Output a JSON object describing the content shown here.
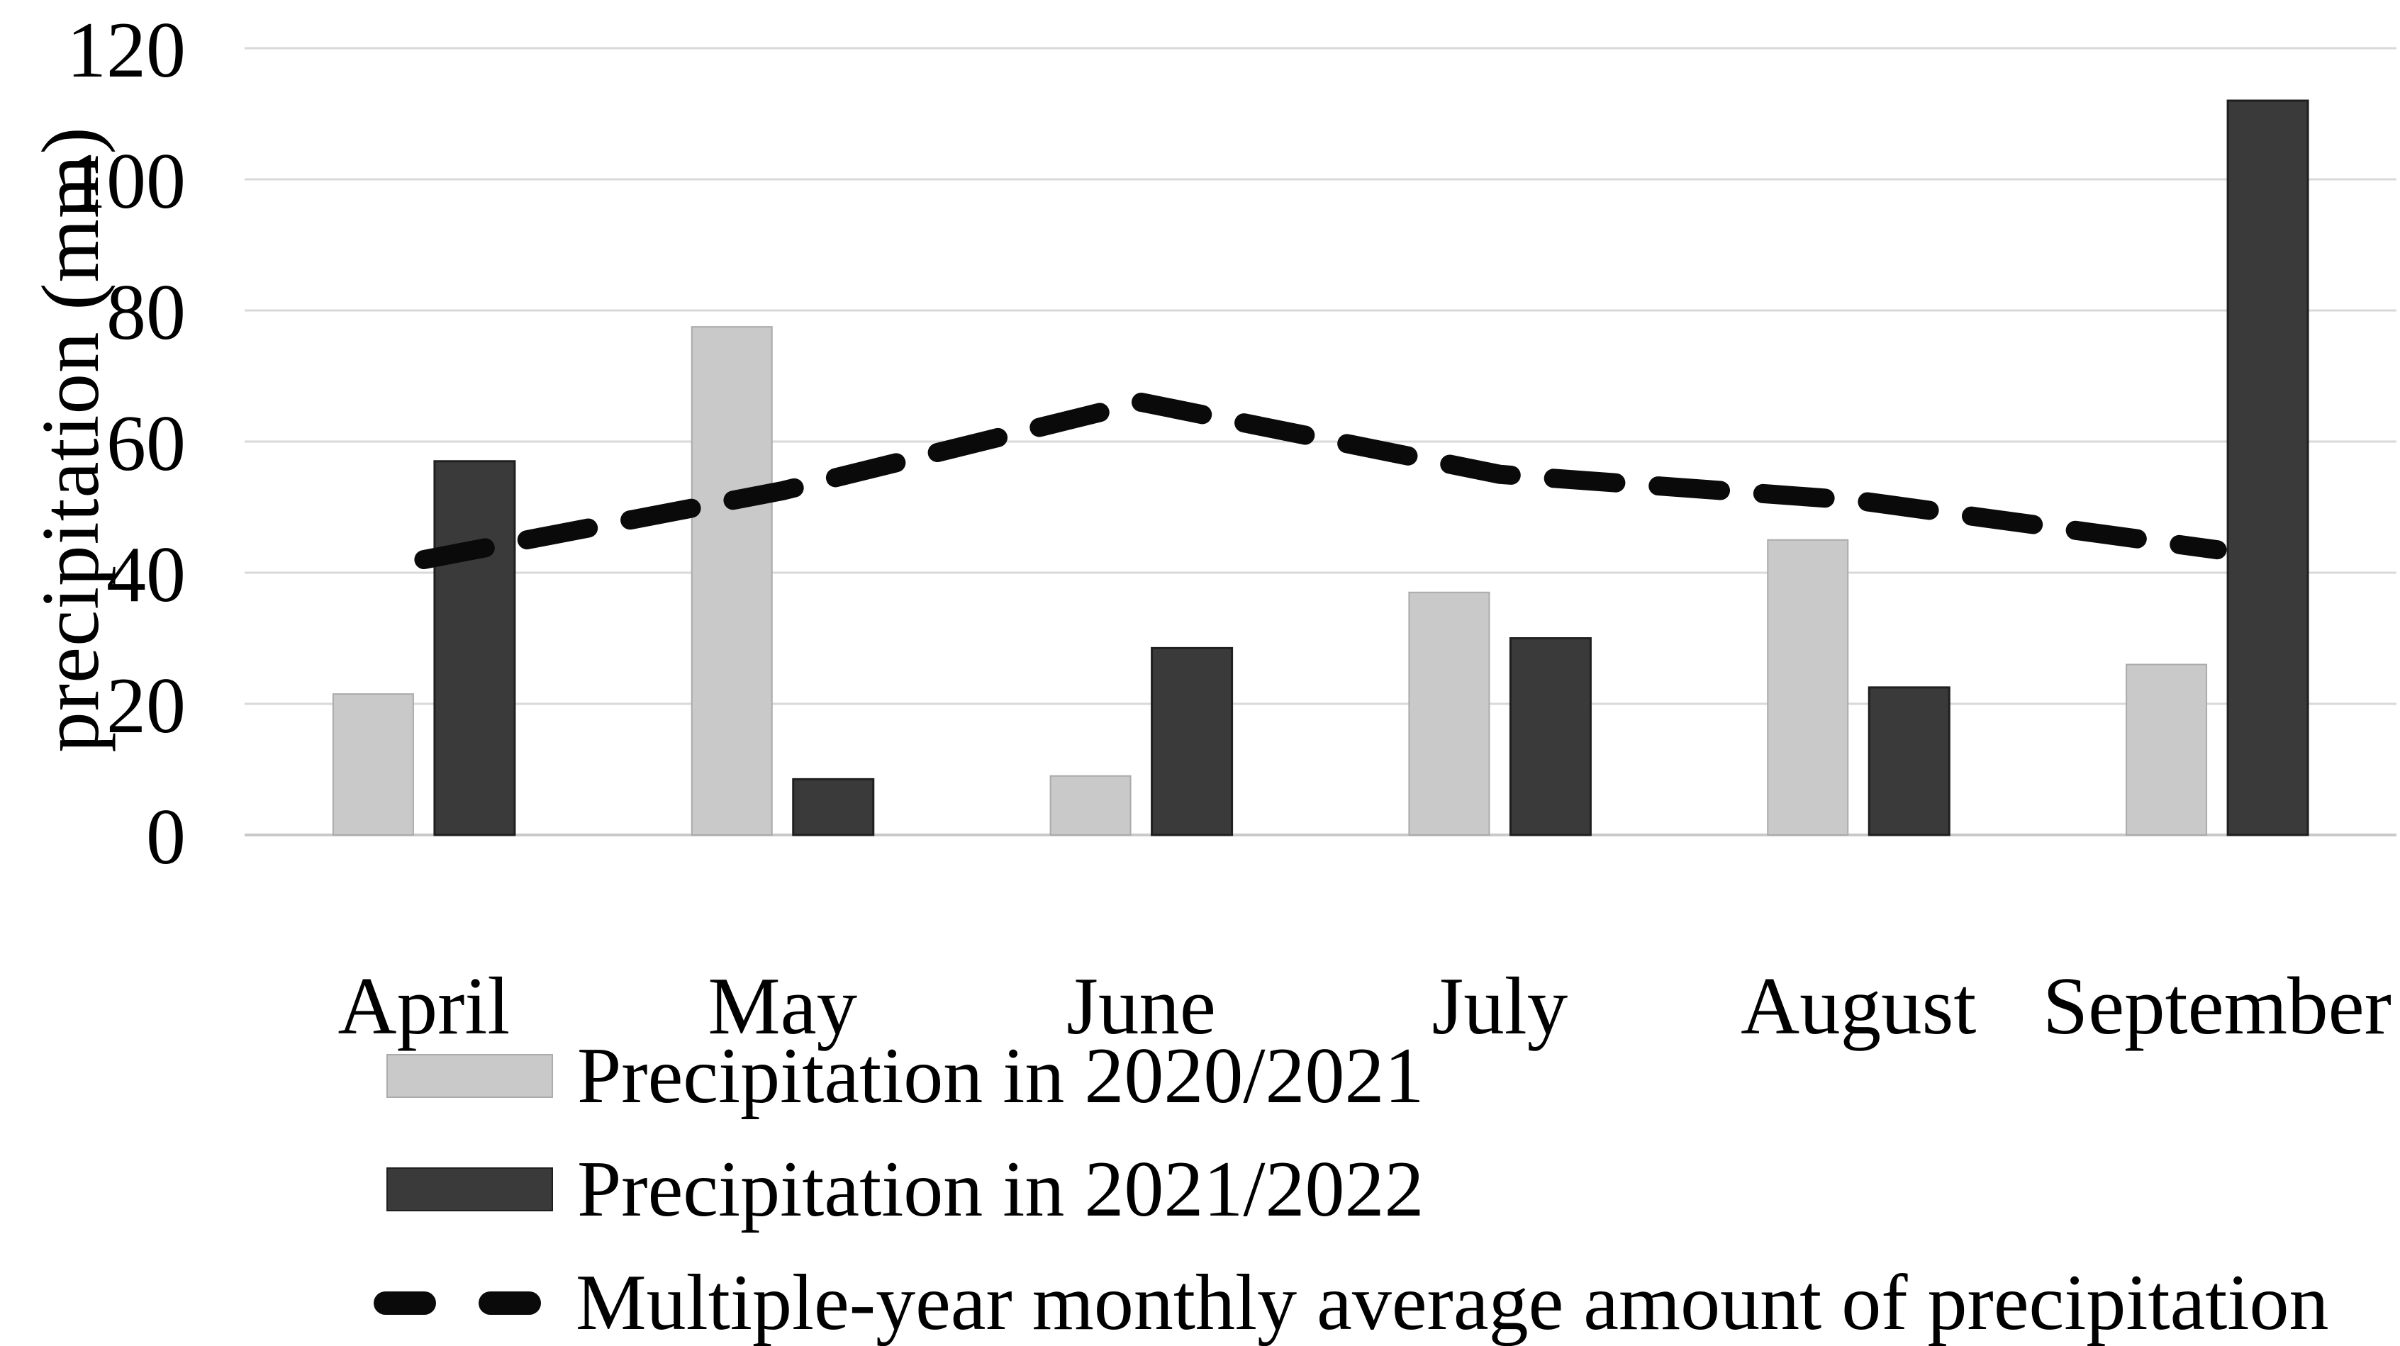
{
  "figure": {
    "background": "#ffffff",
    "text_color": "#000000"
  },
  "chart_data": {
    "type": "bar",
    "subtype": "grouped-bars-with-dashed-line-overlay",
    "categories": [
      "April",
      "May",
      "June",
      "July",
      "August",
      "September"
    ],
    "series": [
      {
        "name": "Precipitation in 2020/2021",
        "type": "bar",
        "color": "#c9c9c9",
        "values": [
          21.5,
          77.5,
          9,
          37,
          45,
          26
        ]
      },
      {
        "name": "Precipitation in 2021/2022",
        "type": "bar",
        "color": "#3a3a3a",
        "values": [
          57,
          8.5,
          28.5,
          30,
          22.5,
          112
        ]
      },
      {
        "name": "Multiple-year monthly average amount of precipitation",
        "type": "line",
        "style": "dashed",
        "color": "#0a0a0a",
        "values": [
          42,
          52.5,
          66,
          55,
          51,
          43.5
        ]
      }
    ],
    "title": "",
    "xlabel": "",
    "ylabel": "precipitation (mm)",
    "ylim": [
      0,
      120
    ],
    "yticks": [
      0,
      20,
      40,
      60,
      80,
      100,
      120
    ],
    "grid": "horizontal",
    "gridline_color": "#d9d9d9",
    "zero_line_color": "#c9c9c9",
    "legend_position": "bottom-left"
  },
  "legend": {
    "items": [
      {
        "label": "Precipitation in 2020/2021",
        "marker": "light-gray-swatch"
      },
      {
        "label": "Precipitation in 2021/2022",
        "marker": "dark-gray-swatch"
      },
      {
        "label": "Multiple-year monthly average amount of precipitation",
        "marker": "black-dashed-line"
      }
    ]
  }
}
